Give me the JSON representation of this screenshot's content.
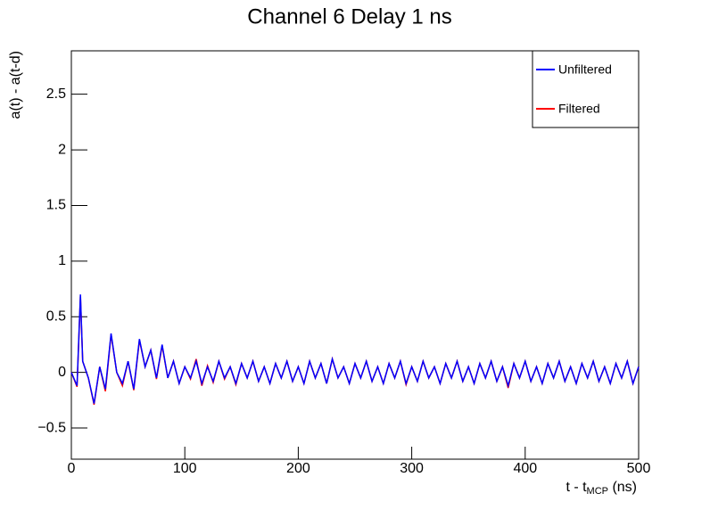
{
  "chart_data": {
    "type": "line",
    "title": "Channel 6 Delay 1 ns",
    "ylabel": "a(t) - a(t-d)",
    "xlabel_parts": [
      "t - t",
      "MCP",
      " (ns)"
    ],
    "xlim": [
      0,
      500
    ],
    "xticks": [
      0,
      100,
      200,
      300,
      400,
      500
    ],
    "ylim": [
      -0.78,
      2.89
    ],
    "yticks": [
      {
        "value": -0.5,
        "label": "−0.5"
      },
      0,
      0.5,
      1,
      1.5,
      2,
      2.5
    ],
    "legend": "top-right",
    "x": [
      0,
      5,
      8,
      10,
      15,
      20,
      25,
      30,
      35,
      40,
      45,
      50,
      55,
      60,
      65,
      70,
      75,
      80,
      85,
      90,
      95,
      100,
      105,
      110,
      115,
      120,
      125,
      130,
      135,
      140,
      145,
      150,
      155,
      160,
      165,
      170,
      175,
      180,
      185,
      190,
      195,
      200,
      205,
      210,
      215,
      220,
      225,
      230,
      235,
      240,
      245,
      250,
      255,
      260,
      265,
      270,
      275,
      280,
      285,
      290,
      295,
      300,
      305,
      310,
      315,
      320,
      325,
      330,
      335,
      340,
      345,
      350,
      355,
      360,
      365,
      370,
      375,
      380,
      385,
      390,
      395,
      400,
      405,
      410,
      415,
      420,
      425,
      430,
      435,
      440,
      445,
      450,
      455,
      460,
      465,
      470,
      475,
      480,
      485,
      490,
      495,
      500
    ],
    "series": [
      {
        "name": "Filtered",
        "color": "#ff0000",
        "values": [
          0,
          -0.13,
          0.68,
          0.1,
          -0.05,
          -0.29,
          0.05,
          -0.17,
          0.34,
          0,
          -0.12,
          0.1,
          -0.16,
          0.29,
          0.05,
          0.2,
          -0.06,
          0.24,
          -0.05,
          0.1,
          -0.1,
          0.05,
          -0.06,
          0.12,
          -0.12,
          0.06,
          -0.09,
          0.1,
          -0.06,
          0.05,
          -0.11,
          0.08,
          -0.05,
          0.1,
          -0.08,
          0.05,
          -0.1,
          0.08,
          -0.05,
          0.1,
          -0.08,
          0.05,
          -0.1,
          0.1,
          -0.05,
          0.08,
          -0.1,
          0.12,
          -0.05,
          0.05,
          -0.1,
          0.08,
          -0.05,
          0.1,
          -0.08,
          0.05,
          -0.1,
          0.08,
          -0.05,
          0.1,
          -0.11,
          0.05,
          -0.08,
          0.1,
          -0.05,
          0.05,
          -0.1,
          0.08,
          -0.05,
          0.1,
          -0.08,
          0.05,
          -0.1,
          0.08,
          -0.05,
          0.1,
          -0.08,
          0.05,
          -0.14,
          0.08,
          -0.05,
          0.1,
          -0.08,
          0.05,
          -0.1,
          0.08,
          -0.05,
          0.1,
          -0.08,
          0.05,
          -0.1,
          0.08,
          -0.05,
          0.1,
          -0.08,
          0.05,
          -0.1,
          0.08,
          -0.05,
          0.1,
          -0.1,
          0.05
        ]
      },
      {
        "name": "Unfiltered",
        "color": "#0000ff",
        "values": [
          0,
          -0.12,
          0.7,
          0.1,
          -0.05,
          -0.28,
          0.05,
          -0.15,
          0.35,
          0,
          -0.1,
          0.1,
          -0.15,
          0.3,
          0.05,
          0.2,
          -0.05,
          0.25,
          -0.05,
          0.1,
          -0.1,
          0.05,
          -0.05,
          0.1,
          -0.1,
          0.05,
          -0.08,
          0.1,
          -0.05,
          0.05,
          -0.1,
          0.08,
          -0.05,
          0.1,
          -0.08,
          0.05,
          -0.1,
          0.08,
          -0.05,
          0.1,
          -0.08,
          0.05,
          -0.1,
          0.1,
          -0.05,
          0.08,
          -0.1,
          0.12,
          -0.05,
          0.05,
          -0.1,
          0.08,
          -0.05,
          0.1,
          -0.08,
          0.05,
          -0.1,
          0.08,
          -0.05,
          0.1,
          -0.1,
          0.05,
          -0.08,
          0.1,
          -0.05,
          0.05,
          -0.1,
          0.08,
          -0.05,
          0.1,
          -0.08,
          0.05,
          -0.1,
          0.08,
          -0.05,
          0.1,
          -0.08,
          0.05,
          -0.12,
          0.08,
          -0.05,
          0.1,
          -0.08,
          0.05,
          -0.1,
          0.08,
          -0.05,
          0.1,
          -0.08,
          0.05,
          -0.1,
          0.08,
          -0.05,
          0.1,
          -0.08,
          0.05,
          -0.1,
          0.08,
          -0.05,
          0.1,
          -0.1,
          0.05
        ]
      }
    ]
  }
}
